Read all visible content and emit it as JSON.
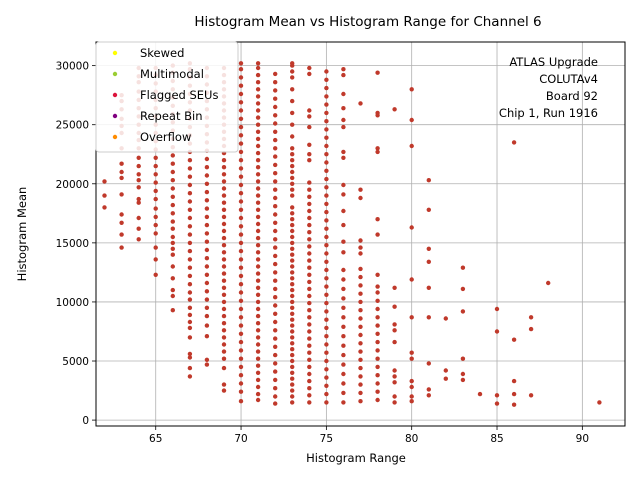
{
  "chart_data": {
    "type": "scatter",
    "title": "Histogram Mean vs Histogram Range for Channel 6",
    "xlabel": "Histogram Range",
    "ylabel": "Histogram Mean",
    "xlim": [
      61.5,
      92.5
    ],
    "ylim": [
      -500,
      32000
    ],
    "xticks": [
      65,
      70,
      75,
      80,
      85,
      90
    ],
    "yticks": [
      0,
      5000,
      10000,
      15000,
      20000,
      25000,
      30000
    ],
    "grid": true,
    "legend_position": "top-left",
    "annotation": [
      "ATLAS Upgrade",
      "COLUTAv4",
      "Board 92",
      "Chip 1, Run 1916"
    ],
    "legend": [
      {
        "name": "Skewed",
        "color": "#ffff00"
      },
      {
        "name": "Multimodal",
        "color": "#9acd32"
      },
      {
        "name": "Flagged SEUs",
        "color": "#dc143c"
      },
      {
        "name": "Repeat Bin",
        "color": "#800080"
      },
      {
        "name": "Overflow",
        "color": "#ff8c00"
      }
    ],
    "point_color": "#c0392b",
    "columns": [
      {
        "x": 62,
        "y": [
          18000,
          19000,
          20200
        ]
      },
      {
        "x": 63,
        "y": [
          14600,
          15700,
          16700,
          17400,
          19100,
          20500,
          21000,
          21700,
          23000,
          24300,
          24900,
          25500,
          26300,
          27000,
          27500
        ]
      },
      {
        "x": 64,
        "y": [
          15300,
          16200,
          17100,
          18400,
          18700,
          19700,
          20300,
          20800,
          21500,
          22200,
          23000,
          23700,
          24300,
          25000,
          25700,
          26400,
          27100,
          27800,
          28600,
          29100,
          29800
        ]
      },
      {
        "x": 65,
        "y": [
          12300,
          13600,
          14600,
          15800,
          16500,
          17200,
          17900,
          18700,
          19400,
          20100,
          20800,
          21500,
          22200,
          22900,
          23600,
          24300,
          25000,
          25700,
          26400,
          27100,
          27800,
          28500,
          29200,
          29800
        ]
      },
      {
        "x": 66,
        "y": [
          9300,
          10500,
          11000,
          12000,
          13000,
          14000,
          14500,
          15000,
          15500,
          16200,
          16800,
          17500,
          18200,
          18900,
          19600,
          20300,
          21000,
          21700,
          22400,
          23100,
          23800,
          24500,
          25200,
          25900,
          26600,
          27300,
          28000,
          28700,
          29400,
          30000
        ]
      },
      {
        "x": 67,
        "y": [
          3700,
          4400,
          5300,
          5600,
          7000,
          7800,
          8300,
          8900,
          9500,
          10200,
          10800,
          11500,
          12200,
          12900,
          13600,
          14300,
          15000,
          15700,
          16400,
          17100,
          17800,
          18500,
          19200,
          19900,
          20600,
          21300,
          22000,
          22700,
          23400,
          24100,
          24800,
          25500,
          26200,
          26900,
          27600,
          28300,
          29000,
          29700,
          30200
        ]
      },
      {
        "x": 68,
        "y": [
          4700,
          5100,
          7100,
          8000,
          8800,
          9500,
          10200,
          10900,
          11600,
          12300,
          13000,
          13700,
          14400,
          15100,
          15800,
          16500,
          17200,
          17900,
          18600,
          19300,
          20000,
          20700,
          21400,
          22100,
          22800,
          23500,
          24200,
          24900,
          25600,
          26300,
          27000,
          27700,
          28400,
          29100,
          29800
        ]
      },
      {
        "x": 69,
        "y": [
          2500,
          3000,
          4400,
          5200,
          5800,
          6400,
          7000,
          7600,
          8200,
          8800,
          9400,
          10000,
          10600,
          11200,
          11800,
          12400,
          13000,
          13600,
          14200,
          14800,
          15400,
          16000,
          16600,
          17200,
          17800,
          18400,
          19000,
          19600,
          20200,
          20800,
          21400,
          22000,
          22600,
          23200,
          23800,
          24400,
          25000,
          25600,
          26200,
          26800,
          27400,
          28000,
          28600,
          29200,
          29800
        ]
      },
      {
        "x": 70,
        "y": [
          1600,
          2400,
          3100,
          3800,
          4500,
          5200,
          5900,
          6600,
          7300,
          8000,
          8700,
          9400,
          10100,
          10800,
          11500,
          12200,
          12900,
          13600,
          14300,
          15000,
          15700,
          16400,
          17100,
          17800,
          18500,
          19200,
          19900,
          20600,
          21300,
          22000,
          22700,
          23400,
          24100,
          24800,
          25500,
          26200,
          26900,
          27600,
          28300,
          29000,
          29700,
          30200
        ]
      },
      {
        "x": 71,
        "y": [
          1700,
          2200,
          2800,
          3400,
          4000,
          4600,
          5200,
          5800,
          6400,
          7000,
          7600,
          8200,
          8800,
          9400,
          10000,
          10600,
          11200,
          11800,
          12400,
          13000,
          13600,
          14200,
          14800,
          15400,
          16000,
          16600,
          17200,
          17800,
          18400,
          19000,
          19600,
          20200,
          20800,
          21400,
          22000,
          22600,
          23200,
          23800,
          24400,
          25000,
          25600,
          26200,
          26800,
          27400,
          28000,
          28600,
          29200,
          29800,
          30200
        ]
      },
      {
        "x": 72,
        "y": [
          1400,
          2000,
          2700,
          3400,
          4100,
          4800,
          5500,
          6200,
          6900,
          7600,
          8300,
          9000,
          9700,
          10400,
          11100,
          11800,
          12500,
          13200,
          13900,
          14600,
          15300,
          16000,
          16700,
          17400,
          18100,
          18800,
          19500,
          20200,
          20900,
          21600,
          22300,
          23000,
          23700,
          24400,
          25100,
          25800,
          26500,
          27200,
          27900,
          28600,
          29300
        ]
      },
      {
        "x": 73,
        "y": [
          1500,
          2000,
          2500,
          3000,
          3500,
          4000,
          4500,
          5000,
          5500,
          6000,
          6500,
          7000,
          7500,
          8000,
          8500,
          9000,
          9500,
          10000,
          10500,
          11000,
          11500,
          12000,
          12500,
          13000,
          13500,
          14000,
          14500,
          15000,
          15500,
          16000,
          16500,
          17000,
          17500,
          18000,
          19000,
          19500,
          20000,
          20500,
          21000,
          21500,
          22000,
          22500,
          23000,
          24000,
          25000,
          26000,
          27000,
          28000,
          29000,
          29500,
          30000,
          30200
        ]
      },
      {
        "x": 74,
        "y": [
          1500,
          2100,
          2700,
          3300,
          3900,
          4500,
          5100,
          5700,
          6300,
          6900,
          7500,
          8100,
          8700,
          9300,
          9900,
          10500,
          11100,
          11700,
          12300,
          12900,
          13500,
          14100,
          14700,
          15300,
          15900,
          16500,
          17100,
          17700,
          18300,
          18900,
          19500,
          20100,
          22000,
          22500,
          23300,
          24800,
          25700,
          26200,
          29300,
          29800
        ]
      },
      {
        "x": 75,
        "y": [
          1500,
          2200,
          2900,
          3600,
          4300,
          5000,
          5700,
          6400,
          7100,
          7800,
          8500,
          9200,
          9900,
          10600,
          11300,
          12000,
          12700,
          13400,
          14100,
          14800,
          15500,
          16200,
          16900,
          17600,
          18300,
          19000,
          19700,
          20400,
          21100,
          21800,
          22500,
          23200,
          23900,
          24600,
          25300,
          26000,
          26700,
          27400,
          28100,
          28800,
          29500
        ]
      },
      {
        "x": 76,
        "y": [
          1500,
          2300,
          3100,
          3900,
          4700,
          5500,
          6300,
          7100,
          7900,
          8700,
          9500,
          10300,
          11100,
          11900,
          12700,
          14200,
          15100,
          16500,
          17700,
          19100,
          19900,
          22200,
          22700,
          24800,
          25400,
          26400,
          27600,
          29200,
          29700
        ]
      },
      {
        "x": 77,
        "y": [
          1600,
          2300,
          3000,
          3700,
          4400,
          5100,
          5800,
          6500,
          7200,
          7900,
          8600,
          9300,
          10000,
          10700,
          11400,
          12100,
          12800,
          14100,
          14600,
          15200,
          18800,
          19500,
          26800
        ]
      },
      {
        "x": 78,
        "y": [
          1700,
          2400,
          3100,
          3800,
          4500,
          5200,
          5900,
          6600,
          7300,
          8000,
          8700,
          9400,
          10100,
          10800,
          11300,
          12300,
          15700,
          17000,
          22700,
          23000,
          25800,
          26000,
          29400
        ]
      },
      {
        "x": 79,
        "y": [
          1500,
          2000,
          3200,
          3700,
          4200,
          6600,
          7600,
          8100,
          9600,
          11200,
          26300
        ]
      },
      {
        "x": 80,
        "y": [
          1600,
          2000,
          2800,
          3300,
          5200,
          5700,
          8700,
          11900,
          16300,
          23200,
          25400,
          28000
        ]
      },
      {
        "x": 81,
        "y": [
          2100,
          2600,
          4800,
          8700,
          11200,
          13400,
          14500,
          17800,
          20300
        ]
      },
      {
        "x": 82,
        "y": [
          3500,
          4200,
          8600
        ]
      },
      {
        "x": 83,
        "y": [
          3400,
          3900,
          5200,
          9200,
          11100,
          12900
        ]
      },
      {
        "x": 84,
        "y": [
          2200
        ]
      },
      {
        "x": 85,
        "y": [
          1400,
          2100,
          7500,
          9400
        ]
      },
      {
        "x": 86,
        "y": [
          1300,
          2200,
          3300,
          6800,
          23500
        ]
      },
      {
        "x": 87,
        "y": [
          2100,
          7700,
          8700
        ]
      },
      {
        "x": 88,
        "y": [
          11600
        ]
      },
      {
        "x": 91,
        "y": [
          1500
        ]
      }
    ]
  }
}
